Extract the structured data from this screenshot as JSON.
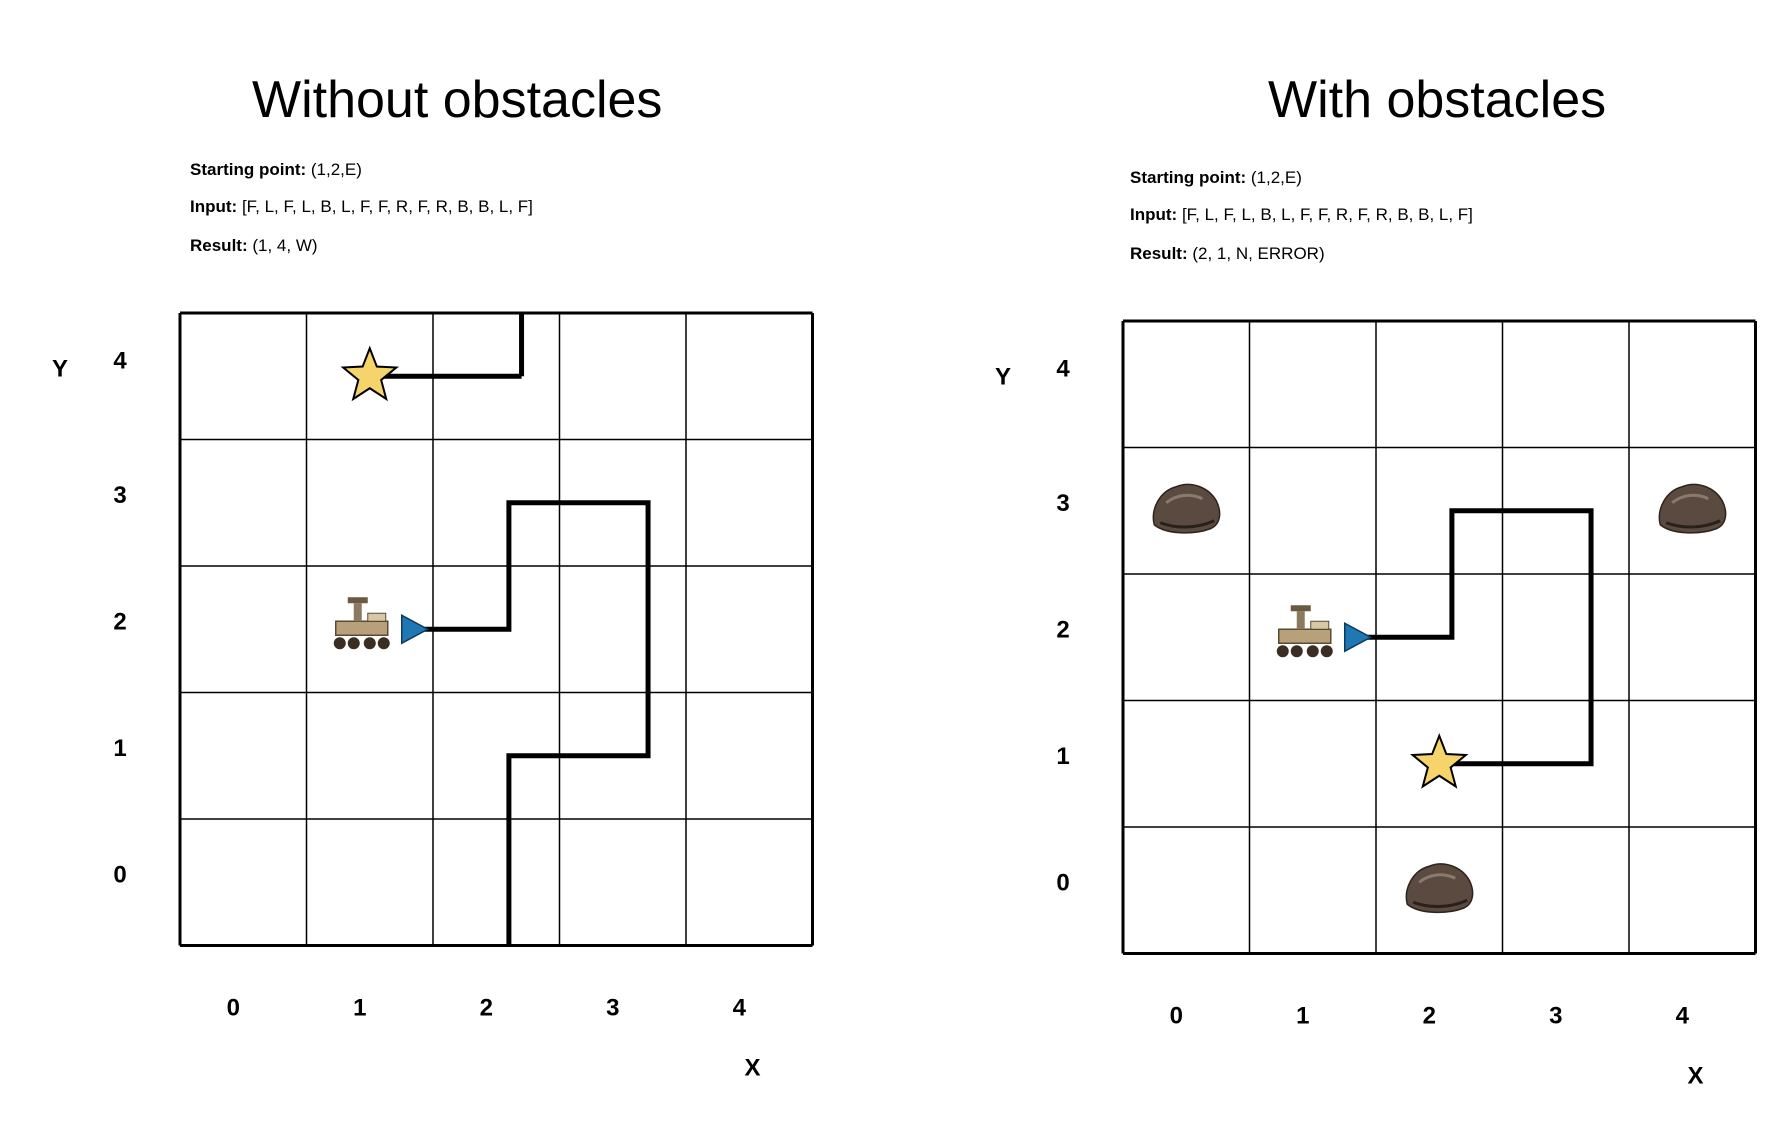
{
  "panels": [
    {
      "title": "Without obstacles",
      "starting_label": "Starting point:",
      "starting_value": "(1,2,E)",
      "input_label": "Input:",
      "input_value": "[F, L, F, L, B, L, F, F, R, F, R, B, B, L, F]",
      "result_label": "Result:",
      "result_value": "(1, 4, W)",
      "x_axis_label": "X",
      "y_axis_label": "Y",
      "x_ticks": [
        "0",
        "1",
        "2",
        "3",
        "4"
      ],
      "y_ticks": [
        "0",
        "1",
        "2",
        "3",
        "4"
      ],
      "rover": {
        "x": 1,
        "y": 2,
        "heading": "E"
      },
      "goal": {
        "x": 1,
        "y": 4
      },
      "obstacles": [],
      "path": [
        [
          1.3,
          2
        ],
        [
          2.1,
          2
        ],
        [
          2.1,
          3
        ],
        [
          3.2,
          3
        ],
        [
          3.2,
          1
        ],
        [
          2.1,
          1
        ],
        [
          2.1,
          -0.5
        ]
      ],
      "path_exit": [
        [
          2.2,
          4
        ],
        [
          2.2,
          4.5
        ]
      ],
      "path_goal": [
        [
          1.1,
          4
        ],
        [
          2.2,
          4
        ]
      ]
    },
    {
      "title": "With obstacles",
      "starting_label": "Starting point:",
      "starting_value": "(1,2,E)",
      "input_label": "Input:",
      "input_value": "[F, L, F, L, B, L, F, F, R, F, R, B, B, L, F]",
      "result_label": "Result:",
      "result_value": "(2, 1, N, ERROR)",
      "x_axis_label": "X",
      "y_axis_label": "Y",
      "x_ticks": [
        "0",
        "1",
        "2",
        "3",
        "4"
      ],
      "y_ticks": [
        "0",
        "1",
        "2",
        "3",
        "4"
      ],
      "rover": {
        "x": 1,
        "y": 2,
        "heading": "E"
      },
      "goal": {
        "x": 2,
        "y": 1
      },
      "obstacles": [
        {
          "x": 0,
          "y": 3
        },
        {
          "x": 4,
          "y": 3
        },
        {
          "x": 2,
          "y": 0
        }
      ],
      "path": [
        [
          1.3,
          2
        ],
        [
          2.1,
          2
        ],
        [
          2.1,
          3
        ],
        [
          3.2,
          3
        ],
        [
          3.2,
          1
        ],
        [
          2.1,
          1
        ]
      ],
      "path_exit": [],
      "path_goal": []
    }
  ],
  "colors": {
    "goal_star": "#f5d46b",
    "rover_arrow": "#1f77b4",
    "rock": "#5a4a40",
    "grid": "#000000"
  },
  "icons": {
    "rover": "mars-rover-icon",
    "goal": "star-icon",
    "obstacle": "rock-icon",
    "heading": "triangle-arrow-icon"
  }
}
